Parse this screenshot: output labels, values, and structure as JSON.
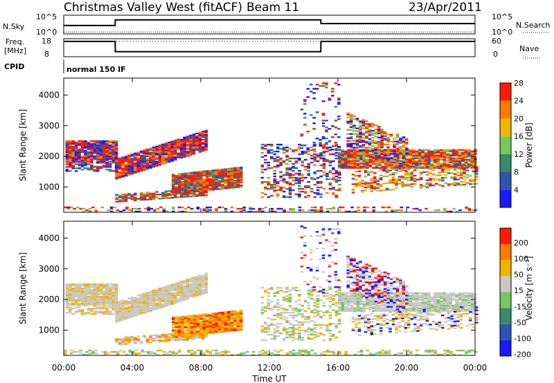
{
  "chart_data": [
    {
      "type": "line",
      "panel": "N.Sky / N.Search",
      "title": "Christmas Valley West (fitACF)",
      "beam_label": "Beam 11",
      "date": "23/Apr/2011",
      "left_label": "N.Sky",
      "right_label": "N.Search",
      "left_ticks": [
        "10^5",
        "10^0"
      ],
      "right_ticks": [
        "10^5",
        "10^0"
      ],
      "x": [
        0,
        3,
        3.01,
        15,
        15.01,
        24
      ],
      "nsky_level": [
        0.45,
        0.45,
        0.75,
        0.75,
        0.55,
        0.55
      ],
      "nsearch_level": [
        0.1,
        0.1,
        0.1,
        0.1,
        0.1,
        0.1
      ]
    },
    {
      "type": "line",
      "panel": "Freq / Nave",
      "left_label_1": "Freq.",
      "left_label_2": "[MHz]",
      "right_label": "Nave",
      "left_ticks": [
        "18",
        "8"
      ],
      "right_ticks": [
        "60",
        "0"
      ],
      "freq_x": [
        0,
        3,
        3.01,
        15,
        15.01,
        24
      ],
      "freq_mhz": [
        16.5,
        16.5,
        10.8,
        10.8,
        16.5,
        16.5
      ],
      "nave_dotted_level": 0.85
    },
    {
      "type": "text",
      "panel": "CPID",
      "label": "CPID",
      "value": "normal 150 IF"
    },
    {
      "type": "heatmap",
      "panel": "Power",
      "ylabel": "Slant Range [km]",
      "yticks": [
        1000,
        2000,
        3000,
        4000
      ],
      "ylim": [
        180,
        4550
      ],
      "xlim": [
        0,
        24
      ],
      "colorbar_label": "Power [dB]",
      "colorbar_ticks": [
        "4",
        "8",
        "12",
        "16",
        "20",
        "24",
        "28"
      ],
      "colorbar_colors": [
        "#1a1aff",
        "#2a55b5",
        "#3a8a6a",
        "#76c85a",
        "#f0b400",
        "#ff7a00",
        "#ff1c00"
      ]
    },
    {
      "type": "heatmap",
      "panel": "Velocity",
      "ylabel": "Slant Range [km]",
      "yticks": [
        1000,
        2000,
        3000,
        4000
      ],
      "ylim": [
        180,
        4550
      ],
      "xlim": [
        0,
        24
      ],
      "colorbar_label": "Velocity [m s⁻¹]",
      "colorbar_ticks": [
        "200",
        "100",
        "50",
        "15",
        "-15",
        "-50",
        "-100",
        "-200"
      ],
      "colorbar_colors": [
        "#1a1aff",
        "#2a55b5",
        "#3a8a6a",
        "#76c85a",
        "#c8c8c8",
        "#f0b400",
        "#ff7a00",
        "#ff1c00"
      ]
    }
  ],
  "xaxis": {
    "label": "Time UT",
    "ticks": [
      "00:00",
      "04:00",
      "08:00",
      "12:00",
      "16:00",
      "20:00",
      "00:00"
    ]
  }
}
